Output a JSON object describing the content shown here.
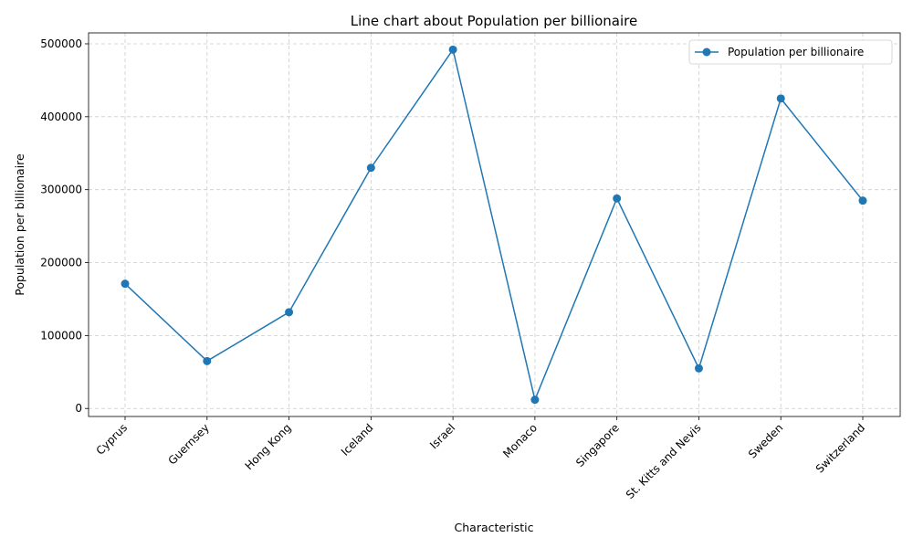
{
  "chart_data": {
    "type": "line",
    "title": "Line chart about Population per billionaire",
    "xlabel": "Characteristic",
    "ylabel": "Population per billionaire",
    "categories": [
      "Cyprus",
      "Guernsey",
      "Hong Kong",
      "Iceland",
      "Israel",
      "Monaco",
      "Singapore",
      "St. Kitts and Nevis",
      "Sweden",
      "Switzerland"
    ],
    "series": [
      {
        "name": "Population per billionaire",
        "values": [
          171000,
          65000,
          132000,
          330000,
          492000,
          12000,
          288000,
          55000,
          425000,
          285000
        ],
        "color": "#1f77b4",
        "marker": "circle"
      }
    ],
    "ylim": [
      -11000,
      515000
    ],
    "yticks": [
      0,
      100000,
      200000,
      300000,
      400000,
      500000
    ],
    "ytick_labels": [
      "0",
      "100000",
      "200000",
      "300000",
      "400000",
      "500000"
    ],
    "grid": true,
    "legend_position": "top-right"
  }
}
